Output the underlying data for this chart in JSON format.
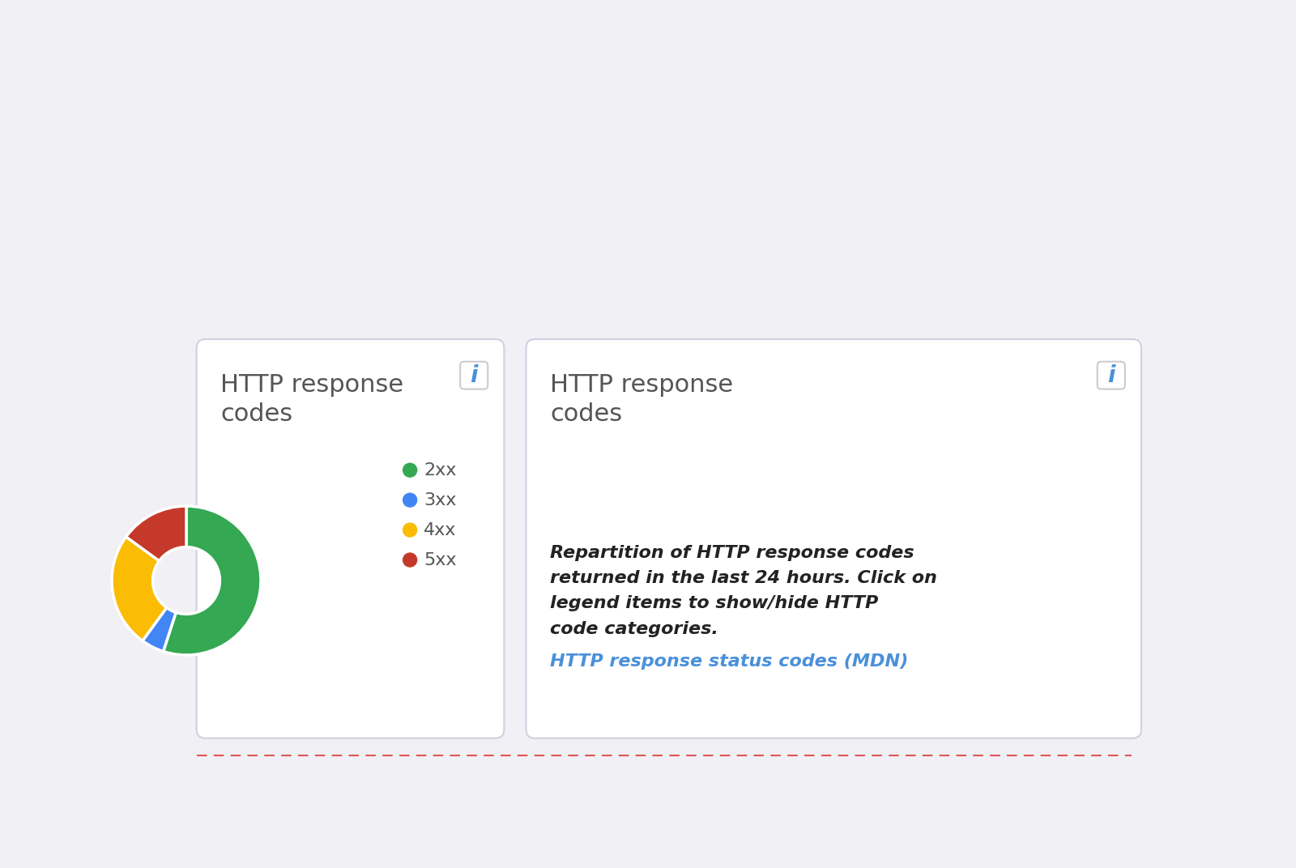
{
  "background_color": "#f0f0f5",
  "card_bg": "#ffffff",
  "card_border": "#d0d0e0",
  "title": "HTTP response\ncodes",
  "title_color": "#555555",
  "title_fontsize": 22,
  "info_icon_color": "#4a90d9",
  "info_box_border": "#cccccc",
  "pie_values": [
    55,
    5,
    25,
    15
  ],
  "pie_colors": [
    "#34a853",
    "#4285f4",
    "#fbbc04",
    "#c5392a"
  ],
  "legend_labels": [
    "2xx",
    "3xx",
    "4xx",
    "5xx"
  ],
  "legend_colors": [
    "#34a853",
    "#4285f4",
    "#fbbc04",
    "#c5392a"
  ],
  "legend_fontsize": 16,
  "legend_text_color": "#555555",
  "description_text": "Repartition of HTTP response codes\nreturned in the last 24 hours. Click on\nlegend items to show/hide HTTP\ncode categories.",
  "link_text": "HTTP response status codes (MDN)",
  "link_color": "#4a90d9",
  "desc_fontsize": 16,
  "link_fontsize": 16,
  "dashed_line_color": "#e05555"
}
